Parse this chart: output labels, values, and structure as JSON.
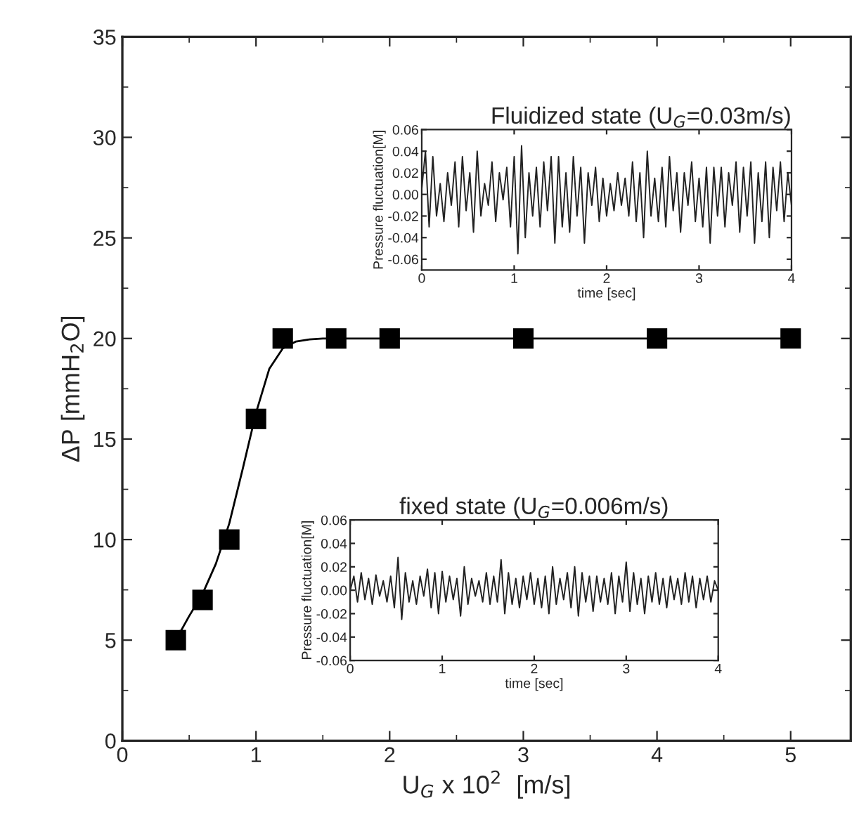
{
  "chart_data": [
    {
      "type": "scatter",
      "xlabel": "U$_{G}$ x 10$^{2}$  [m/s]",
      "ylabel": "ΔP [mmH$_{2}$O]",
      "xlim": [
        0,
        5.45
      ],
      "ylim": [
        0,
        35
      ],
      "xticks": [
        0,
        1,
        2,
        3,
        4,
        5
      ],
      "yticks": [
        0,
        5,
        10,
        15,
        20,
        25,
        30,
        35
      ],
      "grid": false,
      "legend": false,
      "series": [
        {
          "type": "scatter",
          "marker": "square",
          "color": "#000000",
          "x": [
            0.4,
            0.6,
            0.8,
            1.0,
            1.2,
            1.6,
            2.0,
            3.0,
            4.0,
            5.0
          ],
          "values": [
            5,
            7,
            10,
            16,
            20,
            20,
            20,
            20,
            20,
            20
          ]
        },
        {
          "type": "line",
          "marker": "none",
          "line_style": "solid",
          "color": "#000000",
          "x": [
            0.4,
            0.5,
            0.6,
            0.7,
            0.8,
            0.9,
            1.0,
            1.1,
            1.2,
            1.3,
            1.4,
            1.5,
            2.0,
            3.0,
            4.0,
            5.0
          ],
          "values": [
            5,
            6.2,
            7.3,
            8.8,
            10.8,
            13.5,
            16.3,
            18.5,
            19.5,
            19.85,
            19.95,
            20,
            20,
            20,
            20,
            20
          ]
        }
      ]
    },
    {
      "type": "line",
      "title": "Fluidized state (U$_{G}$=0.03m/s)",
      "xlabel": "time [sec]",
      "ylabel": "Pressure fluctuation[M]",
      "xlim": [
        0,
        4
      ],
      "ylim": [
        -0.07,
        0.06
      ],
      "xticks": [
        0,
        1,
        2,
        3,
        4
      ],
      "yticks": [
        -0.06,
        -0.04,
        -0.02,
        {
          "value": 0.0,
          "label": "0.00"
        },
        0.02,
        0.04,
        0.06
      ],
      "grid": false,
      "legend": false,
      "marker": "none",
      "line_style": "solid",
      "series": [
        {
          "color": "#222222",
          "x": [
            0,
            0.04,
            0.08,
            0.12,
            0.16,
            0.2,
            0.24,
            0.28,
            0.32,
            0.36,
            0.4,
            0.44,
            0.48,
            0.52,
            0.56,
            0.6,
            0.64,
            0.68,
            0.72,
            0.76,
            0.8,
            0.84,
            0.88,
            0.92,
            0.96,
            1.0,
            1.04,
            1.08,
            1.12,
            1.16,
            1.2,
            1.24,
            1.28,
            1.32,
            1.36,
            1.4,
            1.44,
            1.48,
            1.52,
            1.56,
            1.6,
            1.64,
            1.68,
            1.72,
            1.76,
            1.8,
            1.84,
            1.88,
            1.92,
            1.96,
            2.0,
            2.04,
            2.08,
            2.12,
            2.16,
            2.2,
            2.24,
            2.28,
            2.32,
            2.36,
            2.4,
            2.44,
            2.48,
            2.52,
            2.56,
            2.6,
            2.64,
            2.68,
            2.72,
            2.76,
            2.8,
            2.84,
            2.88,
            2.92,
            2.96,
            3.0,
            3.04,
            3.08,
            3.12,
            3.16,
            3.2,
            3.24,
            3.28,
            3.32,
            3.36,
            3.4,
            3.44,
            3.48,
            3.52,
            3.56,
            3.6,
            3.64,
            3.68,
            3.72,
            3.76,
            3.8,
            3.84,
            3.88,
            3.92,
            3.96,
            4.0
          ],
          "values": [
            0.005,
            0.04,
            -0.03,
            0.035,
            -0.02,
            0.01,
            -0.025,
            0.02,
            -0.01,
            0.03,
            -0.03,
            0.035,
            -0.015,
            0.02,
            -0.035,
            0.04,
            -0.02,
            0.01,
            -0.01,
            0.03,
            -0.025,
            0.02,
            -0.005,
            0.025,
            -0.03,
            0.035,
            -0.055,
            0.045,
            -0.04,
            0.02,
            -0.02,
            0.025,
            -0.03,
            0.03,
            -0.015,
            0.035,
            -0.045,
            0.035,
            -0.03,
            0.02,
            -0.035,
            0.035,
            -0.02,
            0.025,
            -0.045,
            0.02,
            -0.01,
            0.025,
            -0.025,
            0.015,
            -0.02,
            0.01,
            -0.015,
            0.02,
            -0.01,
            0.015,
            -0.02,
            0.03,
            -0.025,
            0.02,
            -0.04,
            0.04,
            -0.02,
            0.015,
            -0.025,
            0.025,
            -0.03,
            0.035,
            -0.015,
            0.02,
            -0.035,
            0.02,
            -0.01,
            0.03,
            -0.025,
            0.015,
            -0.03,
            0.025,
            -0.045,
            0.025,
            -0.02,
            0.025,
            -0.03,
            0.02,
            -0.01,
            0.03,
            -0.035,
            0.025,
            -0.02,
            0.03,
            -0.045,
            0.02,
            -0.025,
            0.03,
            -0.04,
            0.025,
            -0.015,
            0.03,
            -0.025,
            0.02,
            -0.01
          ]
        }
      ]
    },
    {
      "type": "line",
      "title": "fixed state (U$_{G}$=0.006m/s)",
      "xlabel": "time [sec]",
      "ylabel": "Pressure fluctuation[M]",
      "xlim": [
        0,
        4
      ],
      "ylim": [
        -0.06,
        0.06
      ],
      "xticks": [
        0,
        1,
        2,
        3,
        4
      ],
      "yticks": [
        -0.06,
        -0.04,
        -0.02,
        {
          "value": 0.0,
          "label": "0.00"
        },
        0.02,
        0.04,
        0.06
      ],
      "grid": false,
      "legend": false,
      "marker": "none",
      "line_style": "solid",
      "series": [
        {
          "color": "#222222",
          "x": [
            0,
            0.04,
            0.08,
            0.12,
            0.16,
            0.2,
            0.24,
            0.28,
            0.32,
            0.36,
            0.4,
            0.44,
            0.48,
            0.52,
            0.56,
            0.6,
            0.64,
            0.68,
            0.72,
            0.76,
            0.8,
            0.84,
            0.88,
            0.92,
            0.96,
            1.0,
            1.04,
            1.08,
            1.12,
            1.16,
            1.2,
            1.24,
            1.28,
            1.32,
            1.36,
            1.4,
            1.44,
            1.48,
            1.52,
            1.56,
            1.6,
            1.64,
            1.68,
            1.72,
            1.76,
            1.8,
            1.84,
            1.88,
            1.92,
            1.96,
            2.0,
            2.04,
            2.08,
            2.12,
            2.16,
            2.2,
            2.24,
            2.28,
            2.32,
            2.36,
            2.4,
            2.44,
            2.48,
            2.52,
            2.56,
            2.6,
            2.64,
            2.68,
            2.72,
            2.76,
            2.8,
            2.84,
            2.88,
            2.92,
            2.96,
            3.0,
            3.04,
            3.08,
            3.12,
            3.16,
            3.2,
            3.24,
            3.28,
            3.32,
            3.36,
            3.4,
            3.44,
            3.48,
            3.52,
            3.56,
            3.6,
            3.64,
            3.68,
            3.72,
            3.76,
            3.8,
            3.84,
            3.88,
            3.92,
            3.96,
            4.0
          ],
          "values": [
            0.0,
            0.012,
            -0.01,
            0.015,
            -0.008,
            0.01,
            -0.012,
            0.013,
            -0.005,
            0.008,
            -0.01,
            0.012,
            -0.015,
            0.028,
            -0.025,
            0.015,
            -0.01,
            0.008,
            -0.012,
            0.012,
            -0.005,
            0.018,
            -0.015,
            0.015,
            -0.02,
            0.016,
            -0.01,
            0.012,
            -0.008,
            0.01,
            -0.022,
            0.02,
            -0.012,
            0.01,
            -0.005,
            0.008,
            -0.01,
            0.015,
            -0.012,
            0.012,
            -0.01,
            0.026,
            -0.02,
            0.015,
            -0.012,
            0.01,
            -0.015,
            0.012,
            -0.008,
            0.015,
            -0.012,
            0.01,
            -0.015,
            0.012,
            -0.02,
            0.02,
            -0.012,
            0.01,
            -0.008,
            0.015,
            -0.015,
            0.02,
            -0.022,
            0.015,
            -0.01,
            0.012,
            -0.018,
            0.012,
            -0.01,
            0.01,
            -0.012,
            0.015,
            -0.02,
            0.012,
            -0.01,
            0.024,
            -0.018,
            0.015,
            -0.012,
            0.01,
            -0.02,
            0.012,
            -0.01,
            0.015,
            -0.012,
            0.01,
            -0.015,
            0.012,
            -0.008,
            0.01,
            -0.012,
            0.015,
            -0.01,
            0.012,
            -0.015,
            0.01,
            -0.008,
            0.012,
            -0.01,
            0.008,
            0.0
          ]
        }
      ]
    }
  ]
}
